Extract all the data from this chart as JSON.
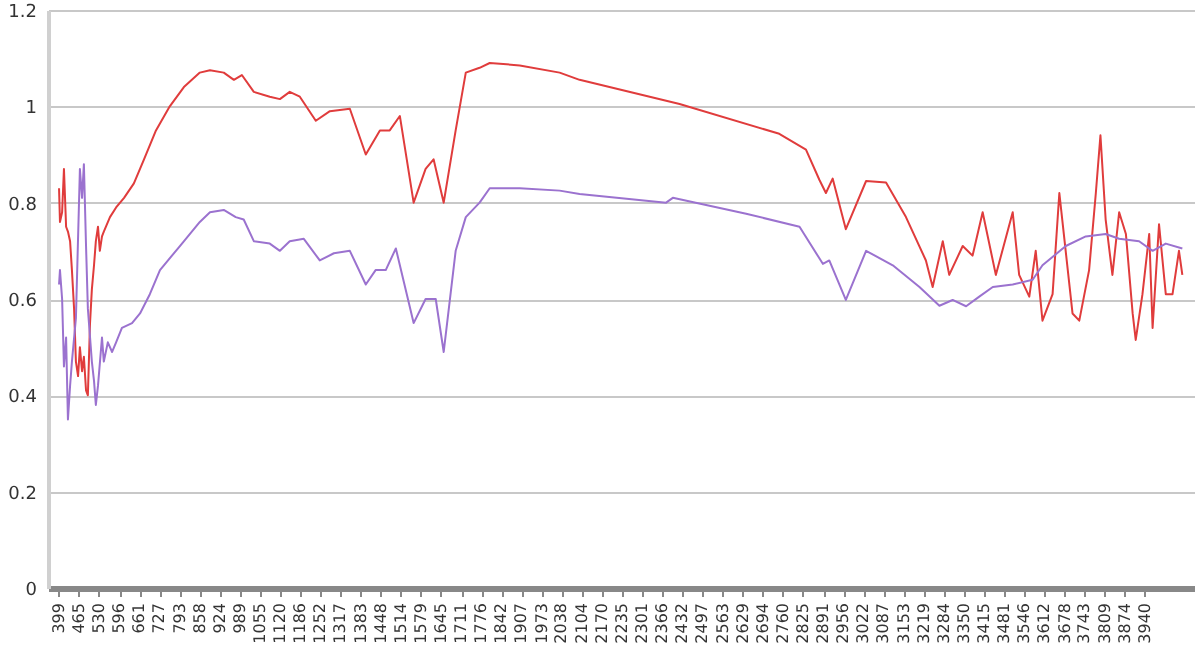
{
  "chart_data": {
    "type": "line",
    "xlim": [
      364,
      4100
    ],
    "ylim": [
      0,
      1.2
    ],
    "xticks": [
      399,
      465,
      530,
      596,
      661,
      727,
      793,
      858,
      924,
      989,
      1055,
      1120,
      1186,
      1252,
      1317,
      1383,
      1448,
      1514,
      1579,
      1645,
      1711,
      1776,
      1842,
      1907,
      1973,
      2038,
      2104,
      2170,
      2235,
      2301,
      2366,
      2432,
      2497,
      2563,
      2629,
      2694,
      2760,
      2825,
      2891,
      2956,
      3022,
      3087,
      3153,
      3219,
      3284,
      3350,
      3415,
      3481,
      3546,
      3612,
      3678,
      3743,
      3809,
      3874,
      3940
    ],
    "yticks": [
      0,
      0.2,
      0.4,
      0.6,
      0.8,
      1,
      1.2
    ],
    "grid": "y",
    "series": [
      {
        "color": "#e03c3c",
        "x": [
          400,
          403,
          410,
          416,
          423,
          429,
          436,
          442,
          449,
          455,
          462,
          468,
          475,
          481,
          488,
          494,
          501,
          507,
          514,
          520,
          527,
          533,
          540,
          546,
          566,
          586,
          612,
          644,
          677,
          716,
          761,
          807,
          859,
          892,
          937,
          970,
          996,
          1035,
          1087,
          1120,
          1152,
          1185,
          1237,
          1283,
          1348,
          1400,
          1446,
          1478,
          1511,
          1556,
          1595,
          1621,
          1654,
          1693,
          1726,
          1771,
          1804,
          1902,
          2032,
          2097,
          2423,
          2748,
          2835,
          2879,
          2900,
          2922,
          2965,
          3031,
          3096,
          3161,
          3226,
          3248,
          3281,
          3302,
          3346,
          3378,
          3411,
          3454,
          3509,
          3530,
          3563,
          3584,
          3606,
          3639,
          3661,
          3704,
          3726,
          3758,
          3780,
          3795,
          3812,
          3834,
          3856,
          3878,
          3900,
          3910,
          3932,
          3954,
          3965,
          3986,
          4008,
          4030,
          4051,
          4062
        ],
        "values": [
          0.83,
          0.76,
          0.78,
          0.87,
          0.75,
          0.74,
          0.72,
          0.66,
          0.58,
          0.47,
          0.44,
          0.5,
          0.45,
          0.48,
          0.41,
          0.4,
          0.55,
          0.62,
          0.67,
          0.72,
          0.75,
          0.7,
          0.73,
          0.74,
          0.77,
          0.79,
          0.81,
          0.84,
          0.89,
          0.95,
          1.0,
          1.04,
          1.07,
          1.075,
          1.07,
          1.055,
          1.065,
          1.03,
          1.02,
          1.015,
          1.03,
          1.02,
          0.97,
          0.99,
          0.995,
          0.9,
          0.95,
          0.95,
          0.98,
          0.8,
          0.87,
          0.89,
          0.8,
          0.95,
          1.07,
          1.08,
          1.09,
          1.085,
          1.07,
          1.055,
          1.005,
          0.943,
          0.91,
          0.847,
          0.82,
          0.85,
          0.745,
          0.845,
          0.842,
          0.77,
          0.68,
          0.625,
          0.72,
          0.65,
          0.71,
          0.69,
          0.78,
          0.65,
          0.78,
          0.65,
          0.605,
          0.7,
          0.555,
          0.61,
          0.82,
          0.57,
          0.555,
          0.66,
          0.82,
          0.94,
          0.765,
          0.65,
          0.78,
          0.735,
          0.57,
          0.515,
          0.61,
          0.735,
          0.54,
          0.755,
          0.61,
          0.61,
          0.7,
          0.65
        ]
      },
      {
        "color": "#9b72cf",
        "x": [
          400,
          403,
          410,
          416,
          423,
          429,
          436,
          442,
          455,
          468,
          475,
          481,
          488,
          494,
          507,
          514,
          520,
          527,
          540,
          546,
          559,
          573,
          586,
          605,
          638,
          664,
          696,
          729,
          794,
          859,
          892,
          937,
          976,
          1002,
          1035,
          1087,
          1120,
          1152,
          1198,
          1250,
          1296,
          1348,
          1400,
          1432,
          1465,
          1498,
          1556,
          1595,
          1628,
          1654,
          1693,
          1726,
          1771,
          1804,
          1902,
          2032,
          2097,
          2379,
          2401,
          2640,
          2814,
          2890,
          2911,
          2965,
          3031,
          3118,
          3205,
          3270,
          3313,
          3357,
          3400,
          3444,
          3509,
          3574,
          3606,
          3682,
          3747,
          3812,
          3856,
          3921,
          3965,
          4008,
          4062
        ],
        "values": [
          0.63,
          0.66,
          0.6,
          0.46,
          0.52,
          0.35,
          0.42,
          0.47,
          0.56,
          0.87,
          0.81,
          0.88,
          0.71,
          0.58,
          0.47,
          0.43,
          0.38,
          0.42,
          0.52,
          0.47,
          0.51,
          0.49,
          0.51,
          0.54,
          0.55,
          0.57,
          0.61,
          0.66,
          0.71,
          0.76,
          0.78,
          0.785,
          0.77,
          0.765,
          0.72,
          0.715,
          0.7,
          0.72,
          0.725,
          0.68,
          0.695,
          0.7,
          0.63,
          0.66,
          0.66,
          0.705,
          0.55,
          0.6,
          0.6,
          0.49,
          0.7,
          0.77,
          0.8,
          0.83,
          0.83,
          0.825,
          0.818,
          0.8,
          0.81,
          0.777,
          0.75,
          0.673,
          0.68,
          0.598,
          0.7,
          0.67,
          0.625,
          0.586,
          0.598,
          0.585,
          0.605,
          0.625,
          0.63,
          0.64,
          0.67,
          0.71,
          0.73,
          0.735,
          0.725,
          0.72,
          0.7,
          0.715,
          0.705
        ]
      }
    ]
  }
}
